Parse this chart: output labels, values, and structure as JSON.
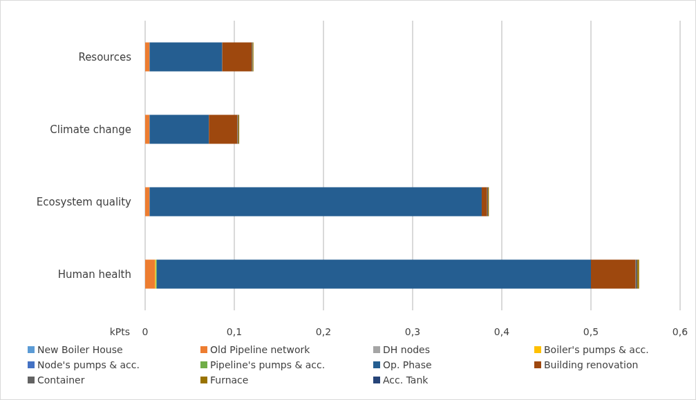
{
  "chart_data": {
    "type": "bar",
    "orientation": "horizontal",
    "stacked": true,
    "xlabel": "kPts",
    "categories": [
      "Resources",
      "Climate change",
      "Ecosystem quality",
      "Human health"
    ],
    "series": [
      {
        "name": "New Boiler House",
        "color": "#5b9bd5",
        "values": [
          0,
          0,
          0,
          0
        ]
      },
      {
        "name": "Old Pipeline network",
        "color": "#ed7d31",
        "values": [
          0.005,
          0.005,
          0.005,
          0.011
        ]
      },
      {
        "name": "DH nodes",
        "color": "#a5a5a5",
        "values": [
          0,
          0,
          0,
          0
        ]
      },
      {
        "name": "Boiler's pumps & acc.",
        "color": "#ffc000",
        "values": [
          0,
          0,
          0,
          0.001
        ]
      },
      {
        "name": "Node's pumps & acc.",
        "color": "#4472c4",
        "values": [
          0,
          0,
          0,
          0
        ]
      },
      {
        "name": "Pipeline's pumps & acc.",
        "color": "#70ad47",
        "values": [
          0,
          0,
          0,
          0.001
        ]
      },
      {
        "name": "Op. Phase",
        "color": "#255e91",
        "values": [
          0.0815,
          0.0665,
          0.3725,
          0.487
        ]
      },
      {
        "name": "Building renovation",
        "color": "#9e480e",
        "values": [
          0.033,
          0.032,
          0.006,
          0.05
        ]
      },
      {
        "name": "Container",
        "color": "#636363",
        "values": [
          0.001,
          0.001,
          0.001,
          0.002
        ]
      },
      {
        "name": "Furnace",
        "color": "#997300",
        "values": [
          0.001,
          0.001,
          0.001,
          0.002
        ]
      },
      {
        "name": "Acc. Tank",
        "color": "#264478",
        "values": [
          0,
          0,
          0,
          0
        ]
      }
    ],
    "xlim": [
      0,
      0.6
    ],
    "xticks": [
      0,
      {
        "value": 0.1,
        "label": "0,1"
      },
      {
        "value": 0.2,
        "label": "0,2"
      },
      {
        "value": 0.3,
        "label": "0,3"
      },
      {
        "value": 0.4,
        "label": "0,4"
      },
      {
        "value": 0.5,
        "label": "0,5"
      },
      {
        "value": 0.6,
        "label": "0,6"
      }
    ],
    "grid": "x",
    "legend": "bottom"
  }
}
